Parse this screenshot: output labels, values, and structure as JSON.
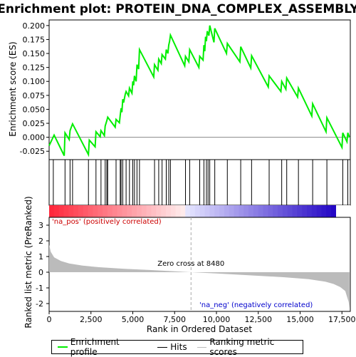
{
  "chart_data": {
    "type": "line",
    "title": "Enrichment plot: PROTEIN_DNA_COMPLEX_ASSEMBLY",
    "xlabel": "Rank in Ordered Dataset",
    "ylabel_top": "Enrichment score (ES)",
    "ylabel_bottom": "Ranked list metric (PreRanked)",
    "xlim": [
      0,
      18000
    ],
    "x_ticks": [
      0,
      2500,
      5000,
      7500,
      10000,
      12500,
      15000,
      17500
    ],
    "x_tick_labels": [
      "0",
      "2,500",
      "5,000",
      "7,500",
      "10,000",
      "12,500",
      "15,000",
      "17,500"
    ],
    "es_ylim": [
      -0.04,
      0.21
    ],
    "es_ticks": [
      -0.025,
      0.0,
      0.025,
      0.05,
      0.075,
      0.1,
      0.125,
      0.15,
      0.175,
      0.2
    ],
    "es_tick_labels": [
      "-0.025",
      "0.000",
      "0.025",
      "0.050",
      "0.075",
      "0.100",
      "0.125",
      "0.150",
      "0.175",
      "0.200"
    ],
    "metric_ylim": [
      -2.5,
      3.5
    ],
    "metric_ticks": [
      3,
      2,
      1,
      0,
      -1,
      -2
    ],
    "metric_tick_labels": [
      "3",
      "2",
      "1",
      "0",
      "-1",
      "-2"
    ],
    "series": [
      {
        "name": "Enrichment profile",
        "color": "#00ee00",
        "x": [
          0,
          300,
          900,
          950,
          1200,
          1250,
          1400,
          2350,
          2400,
          2750,
          2800,
          3050,
          3100,
          3300,
          3350,
          3450,
          3500,
          3950,
          4000,
          4200,
          4250,
          4300,
          4350,
          4400,
          4450,
          4550,
          4600,
          4750,
          4800,
          4950,
          5000,
          5050,
          5100,
          5200,
          5250,
          5350,
          5400,
          6250,
          6300,
          6500,
          6550,
          6700,
          6750,
          6950,
          7000,
          7100,
          7150,
          7200,
          7250,
          8100,
          8150,
          8350,
          8400,
          8950,
          9000,
          9200,
          9250,
          9300,
          9350,
          9400,
          9450,
          9550,
          9600,
          9850,
          9900,
          10600,
          10650,
          11400,
          11450,
          12050,
          12100,
          13100,
          13150,
          13850,
          13900,
          14150,
          14200,
          14850,
          14900,
          15700,
          15750,
          16550,
          16600,
          17500,
          17550,
          17800,
          17850,
          17950
        ],
        "y": [
          -0.015,
          0.004,
          -0.033,
          0.008,
          -0.004,
          0.012,
          0.024,
          -0.031,
          -0.005,
          -0.017,
          0.01,
          0.001,
          0.012,
          0.003,
          0.02,
          0.03,
          0.036,
          0.018,
          0.032,
          0.026,
          0.04,
          0.052,
          0.045,
          0.068,
          0.062,
          0.077,
          0.082,
          0.074,
          0.088,
          0.079,
          0.1,
          0.093,
          0.11,
          0.1,
          0.13,
          0.122,
          0.157,
          0.108,
          0.13,
          0.12,
          0.14,
          0.132,
          0.148,
          0.14,
          0.157,
          0.15,
          0.165,
          0.172,
          0.183,
          0.128,
          0.145,
          0.135,
          0.157,
          0.125,
          0.145,
          0.138,
          0.165,
          0.154,
          0.18,
          0.172,
          0.19,
          0.182,
          0.2,
          0.17,
          0.195,
          0.15,
          0.168,
          0.135,
          0.162,
          0.124,
          0.146,
          0.09,
          0.11,
          0.082,
          0.1,
          0.086,
          0.106,
          0.072,
          0.088,
          0.038,
          0.06,
          0.01,
          0.035,
          -0.018,
          0.008,
          -0.008,
          0.008,
          0.0
        ]
      }
    ],
    "hits": [
      250,
      950,
      1250,
      1400,
      2350,
      2800,
      3100,
      3350,
      3450,
      3500,
      4000,
      4250,
      4300,
      4400,
      4600,
      4800,
      5000,
      5100,
      5250,
      5400,
      6300,
      6550,
      6750,
      7000,
      7150,
      7250,
      8150,
      8400,
      9000,
      9250,
      9400,
      9500,
      9600,
      9900,
      10650,
      11450,
      12100,
      13150,
      13900,
      14200,
      14900,
      15750,
      16600,
      17550,
      17850
    ],
    "metric_profile": {
      "x": [
        0,
        100,
        300,
        700,
        1200,
        2000,
        3000,
        4500,
        6000,
        7500,
        8480,
        10000,
        12000,
        14000,
        15500,
        16500,
        17000,
        17400,
        17700,
        17900,
        17950
      ],
      "y": [
        1.75,
        1.3,
        0.95,
        0.72,
        0.56,
        0.42,
        0.32,
        0.22,
        0.14,
        0.06,
        0.0,
        -0.08,
        -0.2,
        -0.32,
        -0.44,
        -0.6,
        -0.75,
        -0.95,
        -1.2,
        -1.9,
        -2.3
      ]
    },
    "zero_cross_label": "Zero cross at 8480",
    "zero_cross_x": 8480,
    "pos_label": "'na_pos' (positively correlated)",
    "neg_label": "'na_neg' (negatively correlated)",
    "pos_color": "#cc0000",
    "neg_color": "#0000cc",
    "hit_color": "#000000",
    "metric_color": "#bbbbbb"
  },
  "legend": {
    "profile_label": "Enrichment profile",
    "hits_label": "Hits",
    "metric_label": "Ranking metric scores"
  }
}
